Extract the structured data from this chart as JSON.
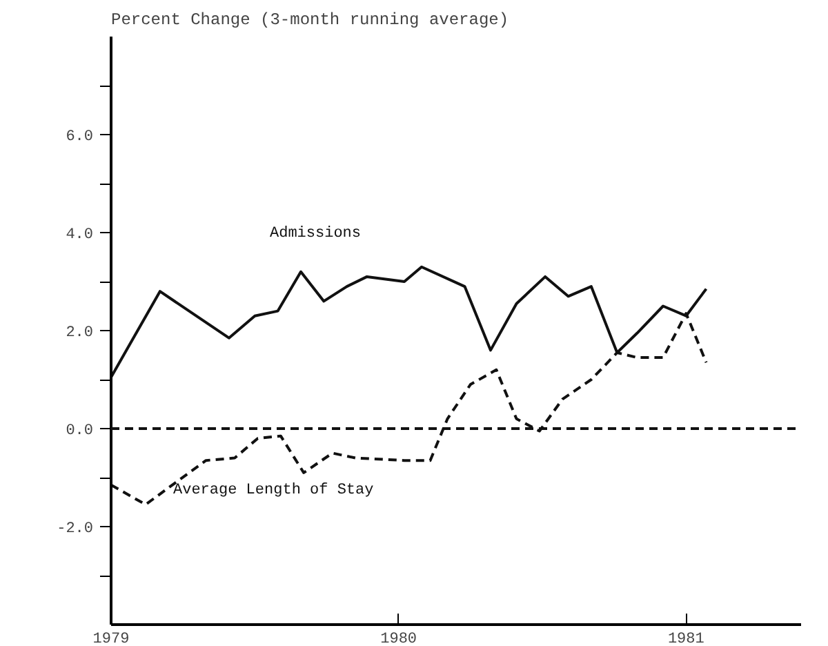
{
  "chart_data": {
    "type": "line",
    "title": "Percent Change (3-month running average)",
    "xlim": [
      1979,
      1981.4
    ],
    "xticks": [
      {
        "value": 1979,
        "label": "1979"
      },
      {
        "value": 1980,
        "label": "1980"
      },
      {
        "value": 1981,
        "label": "1981"
      }
    ],
    "ylim": [
      -4,
      8
    ],
    "yticks": [
      {
        "value": -3,
        "label": null
      },
      {
        "value": -2,
        "label": "-2.0"
      },
      {
        "value": -1,
        "label": null
      },
      {
        "value": 0,
        "label": "0.0"
      },
      {
        "value": 1,
        "label": null
      },
      {
        "value": 2,
        "label": "2.0"
      },
      {
        "value": 3,
        "label": null
      },
      {
        "value": 4,
        "label": "4.0"
      },
      {
        "value": 5,
        "label": null
      },
      {
        "value": 6,
        "label": "6.0"
      },
      {
        "value": 7,
        "label": null
      }
    ],
    "grid": false,
    "legend": false,
    "series": [
      {
        "name": "Admissions",
        "color": "#111111",
        "line_style": "solid",
        "x": [
          1979.0,
          1979.17,
          1979.41,
          1979.5,
          1979.58,
          1979.66,
          1979.74,
          1979.82,
          1979.89,
          1980.02,
          1980.08,
          1980.23,
          1980.32,
          1980.41,
          1980.51,
          1980.59,
          1980.67,
          1980.76,
          1980.83,
          1980.92,
          1981.0,
          1981.07
        ],
        "values": [
          1.05,
          2.8,
          1.85,
          2.3,
          2.4,
          3.2,
          2.6,
          2.9,
          3.1,
          3.0,
          3.3,
          2.9,
          1.6,
          2.55,
          3.1,
          2.7,
          2.9,
          1.55,
          1.95,
          2.5,
          2.3,
          2.85
        ]
      },
      {
        "name": "Average Length of Stay",
        "color": "#111111",
        "line_style": "dashed",
        "x": [
          1979.0,
          1979.12,
          1979.33,
          1979.43,
          1979.51,
          1979.59,
          1979.67,
          1979.77,
          1979.85,
          1980.02,
          1980.11,
          1980.17,
          1980.25,
          1980.34,
          1980.41,
          1980.49,
          1980.57,
          1980.67,
          1980.76,
          1980.83,
          1980.92,
          1981.0,
          1981.07
        ],
        "values": [
          -1.15,
          -1.55,
          -0.65,
          -0.6,
          -0.2,
          -0.15,
          -0.9,
          -0.5,
          -0.6,
          -0.65,
          -0.65,
          0.2,
          0.9,
          1.2,
          0.2,
          -0.05,
          0.6,
          1.0,
          1.55,
          1.45,
          1.45,
          2.35,
          1.35
        ]
      }
    ],
    "ref_lines": [
      {
        "axis": "y",
        "value": 0,
        "color": "#111111",
        "line_style": "dashed"
      }
    ]
  }
}
